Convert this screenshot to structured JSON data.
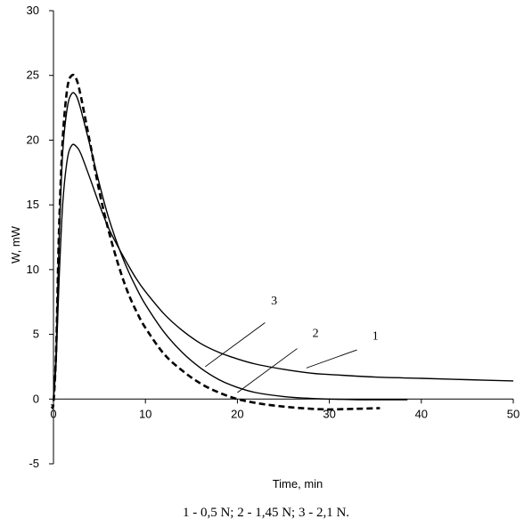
{
  "chart_data": {
    "type": "line",
    "xlabel": "Time, min",
    "ylabel": "W, mW",
    "xlim": [
      0,
      50
    ],
    "ylim": [
      -5,
      30
    ],
    "x_ticks": [
      0,
      10,
      20,
      30,
      40,
      50
    ],
    "y_ticks": [
      -5,
      0,
      5,
      10,
      15,
      20,
      25,
      30
    ],
    "grid": false,
    "legend": "none",
    "caption": "1 - 0,5 N; 2 - 1,45 N; 3 - 2,1 N.",
    "series": [
      {
        "name": "1",
        "style": "solid",
        "color": "#000000",
        "x": [
          0,
          0.3,
          0.6,
          1,
          1.5,
          2,
          2.5,
          3,
          4,
          5,
          6,
          7,
          8,
          9,
          10,
          12,
          14,
          16,
          18,
          20,
          22,
          25,
          28,
          30,
          35,
          40,
          45,
          50
        ],
        "y": [
          0,
          3,
          9,
          15,
          18.5,
          19.6,
          19.5,
          18.9,
          17,
          15,
          13.2,
          11.8,
          10.5,
          9.3,
          8.3,
          6.6,
          5.3,
          4.3,
          3.6,
          3.1,
          2.7,
          2.3,
          2.0,
          1.9,
          1.7,
          1.6,
          1.5,
          1.4
        ]
      },
      {
        "name": "2",
        "style": "solid",
        "color": "#000000",
        "x": [
          0,
          0.3,
          0.6,
          1,
          1.5,
          2,
          2.5,
          3,
          4,
          5,
          6,
          7,
          8,
          9,
          10,
          12,
          14,
          16,
          18,
          20,
          22,
          25,
          28,
          30,
          33,
          36,
          38.5
        ],
        "y": [
          0,
          4,
          12,
          19,
          22.5,
          23.6,
          23.4,
          22.3,
          19.5,
          16.6,
          14,
          11.9,
          10.1,
          8.6,
          7.3,
          5.2,
          3.6,
          2.4,
          1.5,
          0.9,
          0.5,
          0.2,
          0.05,
          0,
          -0.05,
          -0.05,
          -0.05
        ]
      },
      {
        "name": "3",
        "style": "dashed",
        "color": "#000000",
        "x": [
          -0.2,
          0,
          0.3,
          0.6,
          1,
          1.5,
          2,
          2.5,
          3,
          4,
          5,
          6,
          7,
          8,
          9,
          10,
          12,
          14,
          16,
          18,
          20,
          22,
          24,
          26,
          28,
          30,
          33,
          35.5
        ],
        "y": [
          -0.5,
          -0.3,
          4,
          13,
          20,
          24,
          25,
          24.7,
          23.3,
          19.7,
          16,
          13,
          10.5,
          8.4,
          6.8,
          5.5,
          3.5,
          2.2,
          1.2,
          0.5,
          0,
          -0.3,
          -0.5,
          -0.65,
          -0.75,
          -0.8,
          -0.75,
          -0.7
        ]
      }
    ],
    "annotations": [
      {
        "text": "1",
        "label_x": 35,
        "label_y": 4.6,
        "line": [
          [
            33,
            3.8
          ],
          [
            27.5,
            2.4
          ]
        ]
      },
      {
        "text": "2",
        "label_x": 28.5,
        "label_y": 4.8,
        "line": [
          [
            26.5,
            3.9
          ],
          [
            20,
            0.5
          ]
        ]
      },
      {
        "text": "3",
        "label_x": 24,
        "label_y": 7.3,
        "line": [
          [
            23,
            5.9
          ],
          [
            16.5,
            2.5
          ]
        ]
      }
    ]
  }
}
